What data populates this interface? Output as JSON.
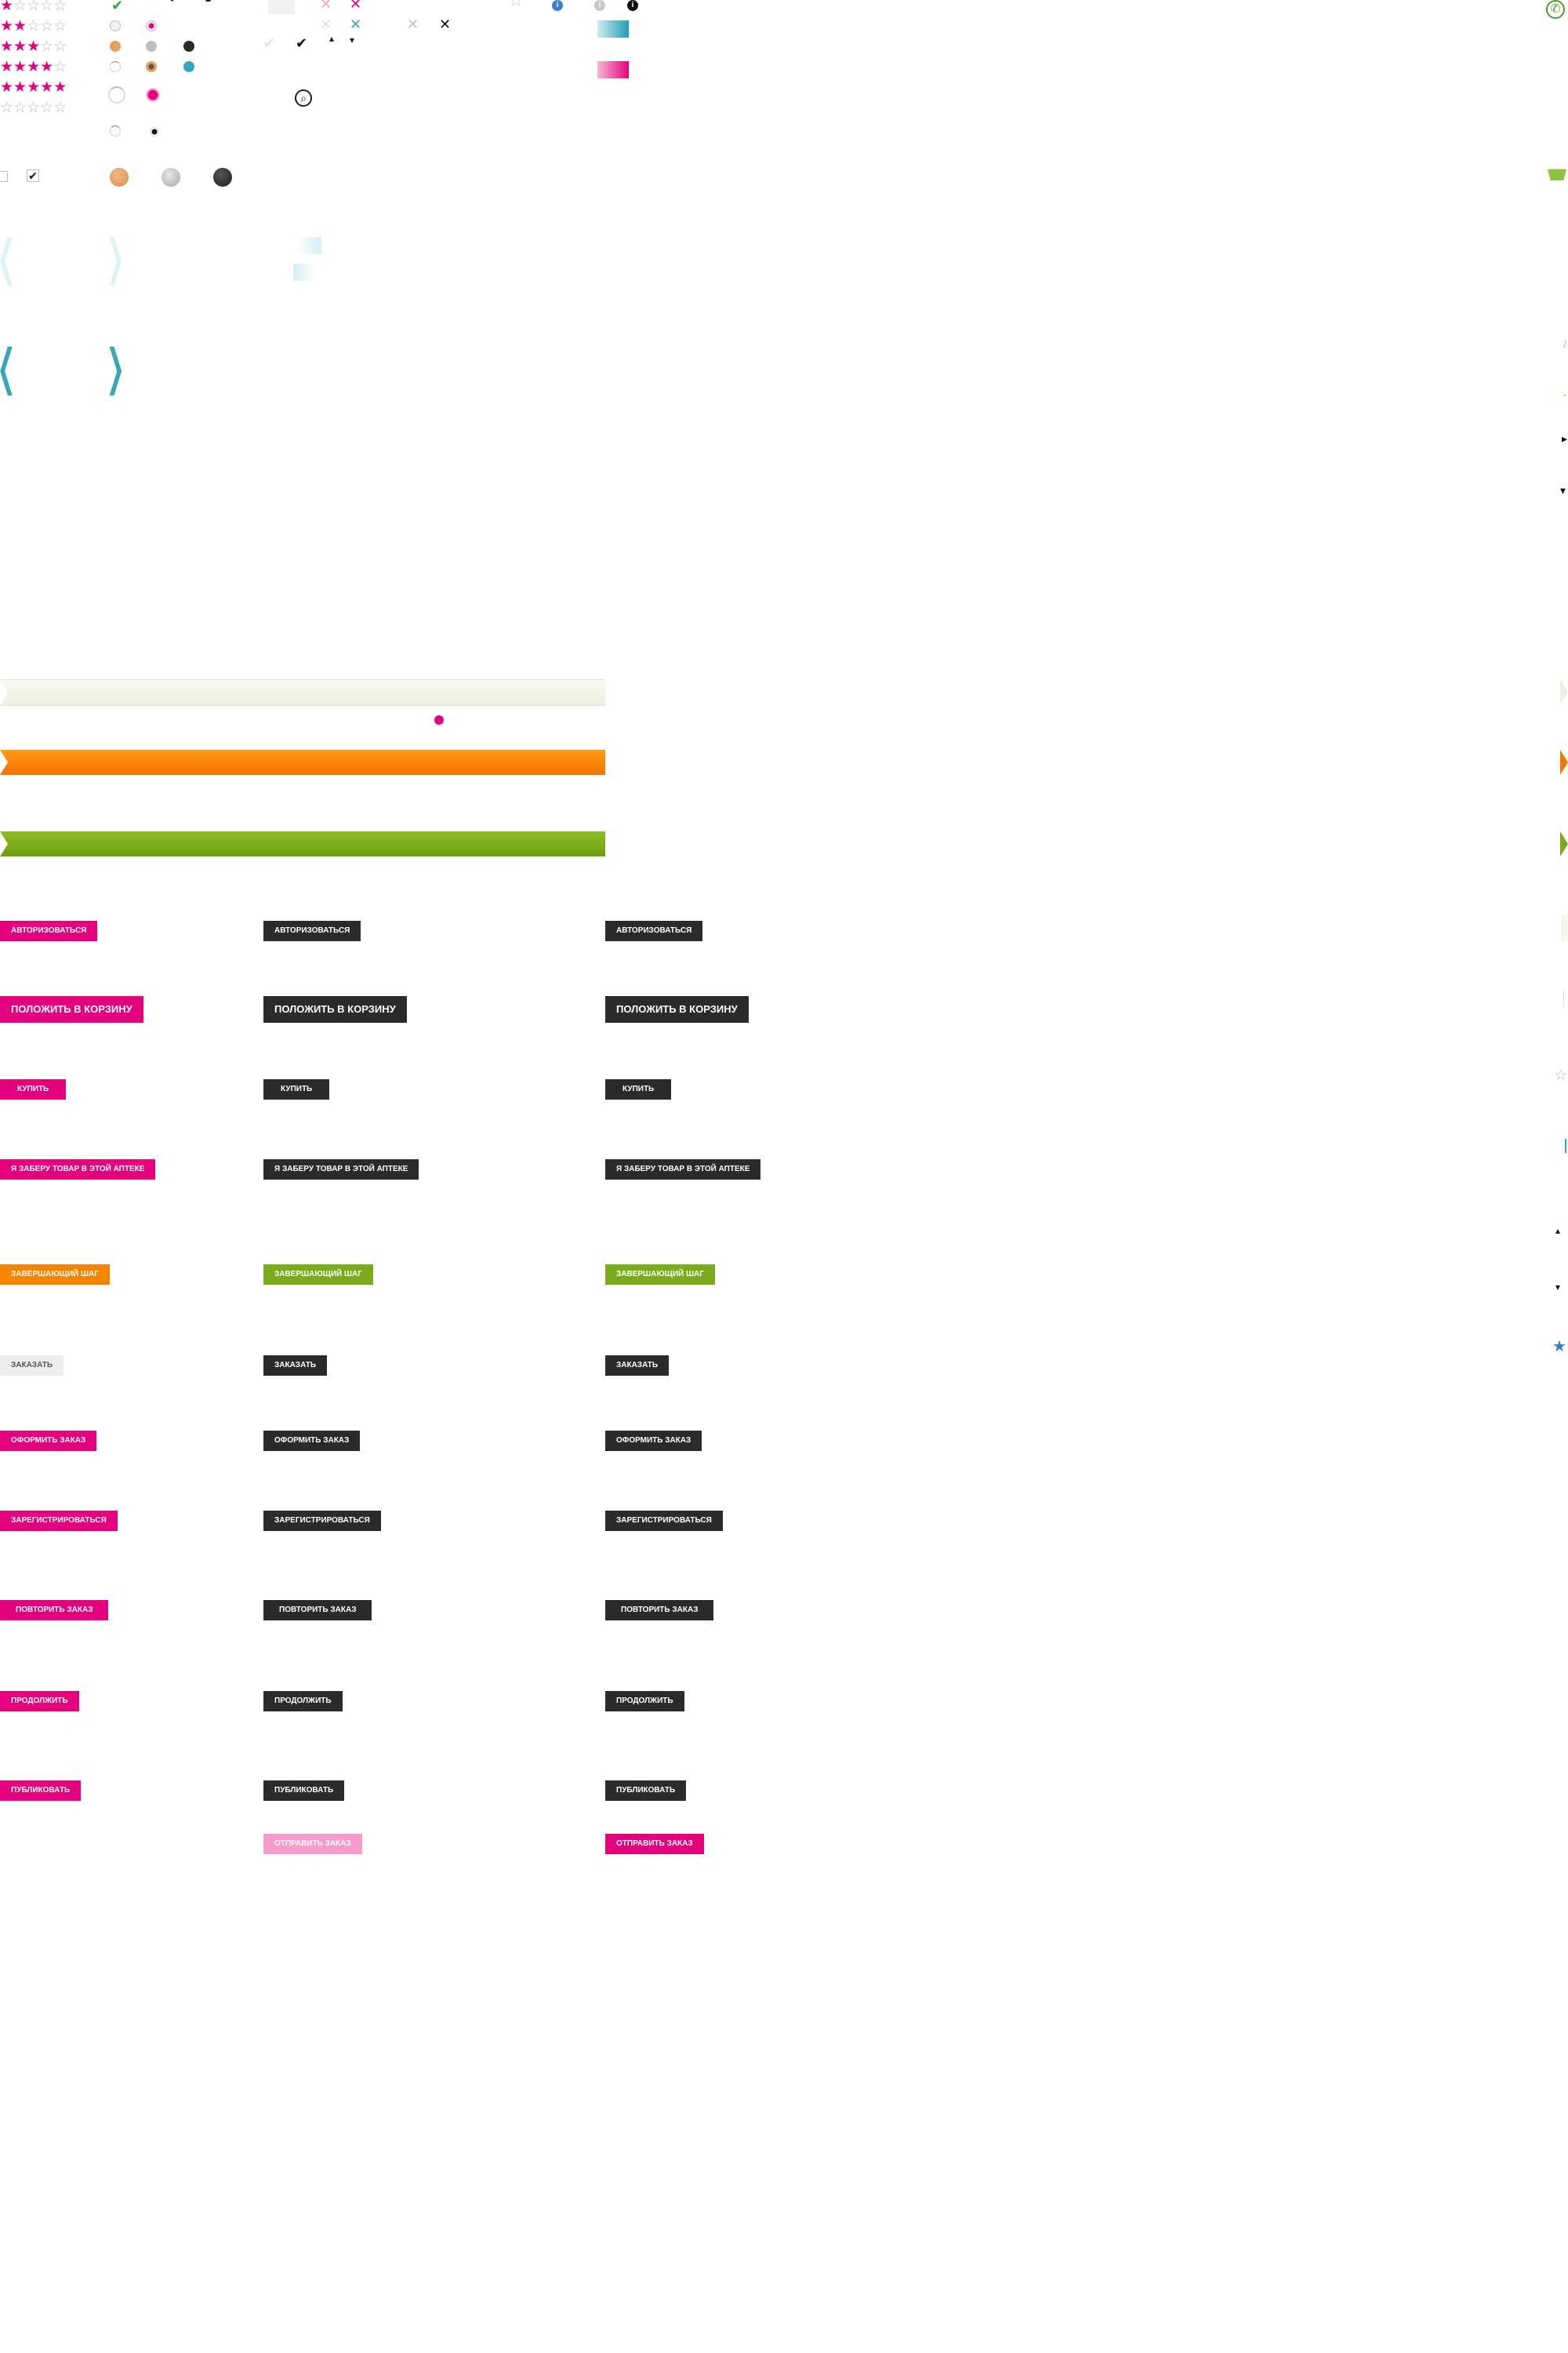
{
  "sprite": {
    "star_rows": [
      {
        "filled": 1,
        "total": 5
      },
      {
        "filled": 2,
        "total": 5
      },
      {
        "filled": 3,
        "total": 5
      },
      {
        "filled": 4,
        "total": 5
      },
      {
        "filled": 5,
        "total": 5
      },
      {
        "filled": 0,
        "total": 5
      }
    ],
    "icons": {
      "checkmark_green": "✔",
      "checkmark_black": "✔",
      "close_light": "✕",
      "close_pink": "✕",
      "close_teal": "✕",
      "close_gray": "✕",
      "close_black": "✕",
      "info_blue": "i",
      "info_gray": "i",
      "info_black": "i",
      "search": "⌕",
      "phone": "✆",
      "basket": "🧺",
      "chevron_left": "⟨",
      "chevron_right": "⟩",
      "star_outline": "☆",
      "star_blue": "★",
      "caret_up": "▴",
      "caret_down": "▾",
      "caret_right": "▸"
    },
    "colors": {
      "pink": "#e5007d",
      "dark": "#2b2b2b",
      "orange": "#f58400",
      "green": "#7aab1b",
      "teal": "#35a8b8",
      "light_teal": "#cdebef",
      "gray": "#bdbdbd"
    }
  },
  "buttons": {
    "col1": [
      "АВТОРИЗОВАТЬСЯ",
      "ПОЛОЖИТЬ В КОРЗИНУ",
      "КУПИТЬ",
      "Я ЗАБЕРУ ТОВАР В ЭТОЙ АПТЕКЕ",
      "ЗАВЕРШАЮЩИЙ ШАГ",
      "ЗАКАЗАТЬ",
      "ОФОРМИТЬ ЗАКАЗ",
      "ЗАРЕГИСТРИРОВАТЬСЯ",
      "ПОВТОРИТЬ ЗАКАЗ",
      "ПРОДОЛЖИТЬ",
      "ПУБЛИКОВАТЬ"
    ],
    "col2": [
      "АВТОРИЗОВАТЬСЯ",
      "ПОЛОЖИТЬ В КОРЗИНУ",
      "КУПИТЬ",
      "Я ЗАБЕРУ ТОВАР В ЭТОЙ АПТЕКЕ",
      "ЗАВЕРШАЮЩИЙ ШАГ",
      "ЗАКАЗАТЬ",
      "ОФОРМИТЬ ЗАКАЗ",
      "ЗАРЕГИСТРИРОВАТЬСЯ",
      "ПОВТОРИТЬ ЗАКАЗ",
      "ПРОДОЛЖИТЬ",
      "ПУБЛИКОВАТЬ",
      "ОТПРАВИТЬ ЗАКАЗ"
    ],
    "col3": [
      "АВТОРИЗОВАТЬСЯ",
      "ПОЛОЖИТЬ В КОРЗИНУ",
      "КУПИТЬ",
      "Я ЗАБЕРУ ТОВАР В ЭТОЙ АПТЕКЕ",
      "ЗАВЕРШАЮЩИЙ ШАГ",
      "ЗАКАЗАТЬ",
      "ОФОРМИТЬ ЗАКАЗ",
      "ЗАРЕГИСТРИРОВАТЬСЯ",
      "ПОВТОРИТЬ ЗАКАЗ",
      "ПРОДОЛЖИТЬ",
      "ПУБЛИКОВАТЬ",
      "ОТПРАВИТЬ ЗАКАЗ"
    ]
  }
}
